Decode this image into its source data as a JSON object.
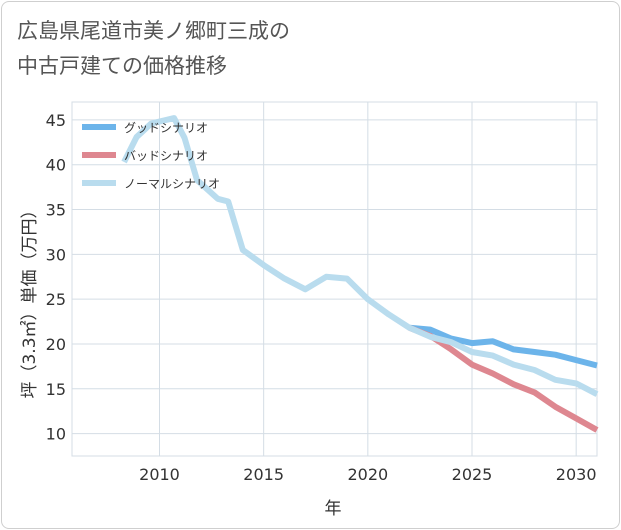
{
  "title": {
    "line1": "広島県尾道市美ノ郷町三成の",
    "line2": "中古戸建ての価格推移"
  },
  "chart_data": {
    "type": "line",
    "xlabel": "年",
    "ylabel": "坪（3.3㎡）単価（万円）",
    "xlim": [
      2005.8,
      2031
    ],
    "ylim": [
      7.5,
      47
    ],
    "xticks": [
      2010,
      2015,
      2020,
      2025,
      2030
    ],
    "yticks": [
      10,
      15,
      20,
      25,
      30,
      35,
      40,
      45
    ],
    "grid": true,
    "legend_position": "top-left",
    "series": [
      {
        "name": "グッドシナリオ",
        "color": "#6cb4ea",
        "points": [
          [
            2022,
            21.8
          ],
          [
            2023,
            21.6
          ],
          [
            2024,
            20.6
          ],
          [
            2025,
            20.1
          ],
          [
            2026,
            20.3
          ],
          [
            2027,
            19.4
          ],
          [
            2028,
            19.1
          ],
          [
            2029,
            18.8
          ],
          [
            2030,
            18.2
          ],
          [
            2031,
            17.6
          ]
        ]
      },
      {
        "name": "バッドシナリオ",
        "color": "#de8790",
        "points": [
          [
            2022,
            21.8
          ],
          [
            2023,
            20.9
          ],
          [
            2024,
            19.4
          ],
          [
            2025,
            17.7
          ],
          [
            2026,
            16.7
          ],
          [
            2027,
            15.5
          ],
          [
            2028,
            14.6
          ],
          [
            2029,
            13.0
          ],
          [
            2030,
            11.7
          ],
          [
            2031,
            10.4
          ]
        ]
      },
      {
        "name": "ノーマルシナリオ",
        "color": "#b9dcee",
        "points": [
          [
            2008.3,
            40.3
          ],
          [
            2008.9,
            43.1
          ],
          [
            2009.6,
            44.6
          ],
          [
            2010.7,
            45.2
          ],
          [
            2011.2,
            43.0
          ],
          [
            2011.8,
            38.3
          ],
          [
            2012.8,
            36.2
          ],
          [
            2013.3,
            35.9
          ],
          [
            2014,
            30.5
          ],
          [
            2015,
            28.8
          ],
          [
            2016,
            27.3
          ],
          [
            2017,
            26.1
          ],
          [
            2018,
            27.5
          ],
          [
            2019,
            27.3
          ],
          [
            2020,
            25.0
          ],
          [
            2021,
            23.3
          ],
          [
            2022,
            21.8
          ],
          [
            2023,
            20.8
          ],
          [
            2024,
            20.2
          ],
          [
            2025,
            19.1
          ],
          [
            2026,
            18.7
          ],
          [
            2027,
            17.7
          ],
          [
            2028,
            17.1
          ],
          [
            2029,
            16.0
          ],
          [
            2030,
            15.6
          ],
          [
            2031,
            14.4
          ]
        ]
      }
    ]
  }
}
